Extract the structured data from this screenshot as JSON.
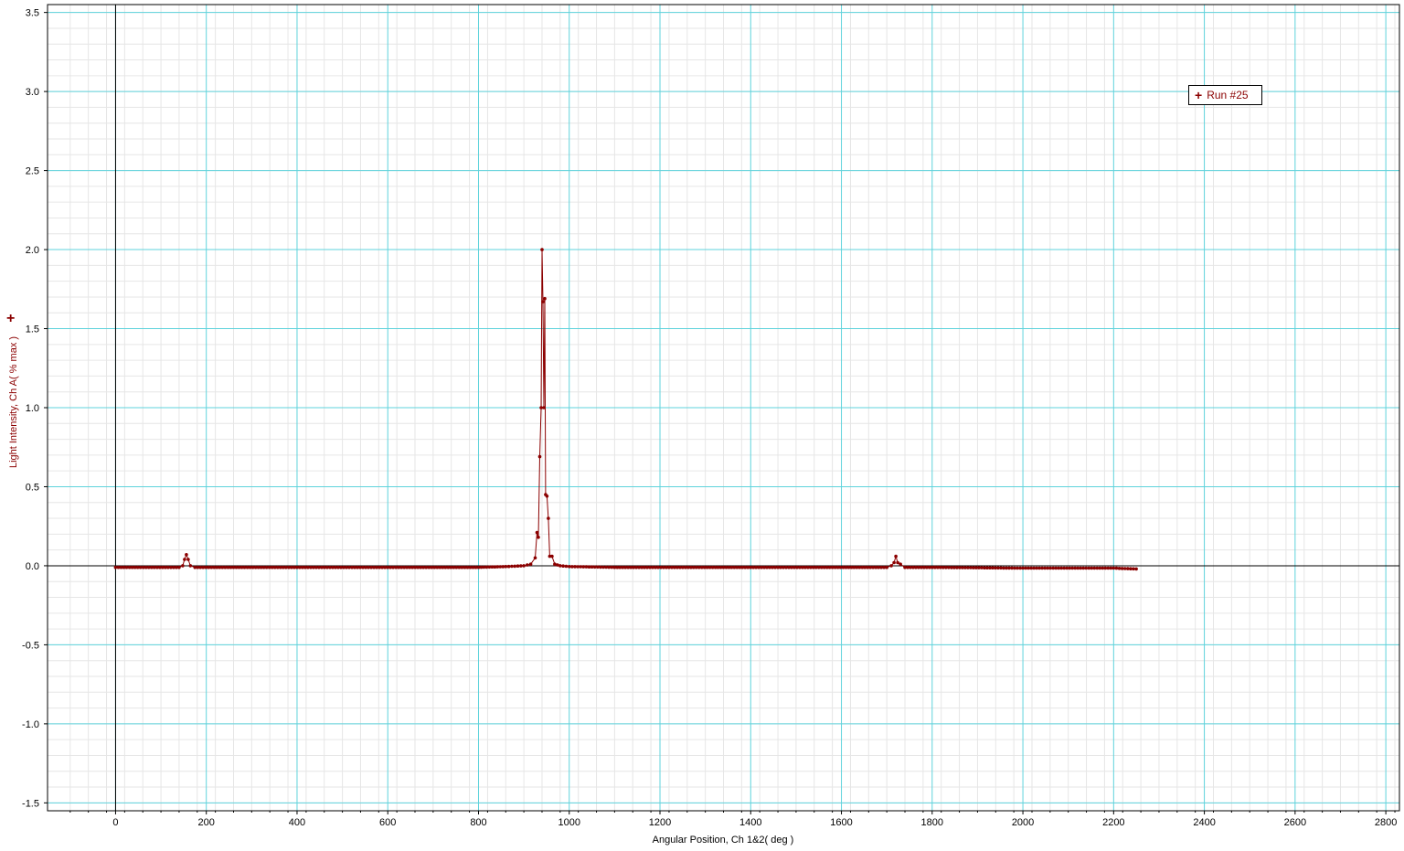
{
  "chart_data": {
    "type": "scatter",
    "title": "",
    "xlabel": "Angular Position, Ch 1&2( deg )",
    "ylabel": "Light Intensity, Ch A( % max )",
    "xlim": [
      -150,
      2830
    ],
    "ylim": [
      -1.55,
      3.55
    ],
    "x_ticks": [
      0,
      200,
      400,
      600,
      800,
      1000,
      1200,
      1400,
      1600,
      1800,
      2000,
      2200,
      2400,
      2600,
      2800
    ],
    "y_ticks": [
      -1.5,
      -1.0,
      -0.5,
      0.0,
      0.5,
      1.0,
      1.5,
      2.0,
      2.5,
      3.0,
      3.5
    ],
    "x_tick_labels": [
      "0",
      "200",
      "400",
      "600",
      "800",
      "1000",
      "1200",
      "1400",
      "1600",
      "1800",
      "2000",
      "2200",
      "2400",
      "2600",
      "2800"
    ],
    "y_tick_labels": [
      "-1.5",
      "-1.0",
      "-0.5",
      "0.0",
      "0.5",
      "1.0",
      "1.5",
      "2.0",
      "2.5",
      "3.0",
      "3.5"
    ],
    "grid": true,
    "legend": {
      "position": "top-right"
    },
    "series": [
      {
        "name": "Run #25",
        "color": "#8b0000",
        "marker": "dot",
        "line": true,
        "points": [
          [
            0,
            -0.01
          ],
          [
            140,
            -0.01
          ],
          [
            148,
            0.0
          ],
          [
            152,
            0.04
          ],
          [
            156,
            0.07
          ],
          [
            160,
            0.04
          ],
          [
            165,
            0.0
          ],
          [
            175,
            -0.01
          ],
          [
            600,
            -0.01
          ],
          [
            800,
            -0.01
          ],
          [
            860,
            -0.005
          ],
          [
            900,
            0.0
          ],
          [
            915,
            0.01
          ],
          [
            925,
            0.05
          ],
          [
            929,
            0.21
          ],
          [
            932,
            0.18
          ],
          [
            935,
            0.69
          ],
          [
            938,
            1.0
          ],
          [
            940,
            2.0
          ],
          [
            942,
            1.67
          ],
          [
            944,
            1.0
          ],
          [
            946,
            1.69
          ],
          [
            948,
            0.45
          ],
          [
            951,
            0.44
          ],
          [
            954,
            0.3
          ],
          [
            957,
            0.06
          ],
          [
            962,
            0.06
          ],
          [
            968,
            0.01
          ],
          [
            980,
            0.0
          ],
          [
            1000,
            -0.005
          ],
          [
            1100,
            -0.01
          ],
          [
            1400,
            -0.01
          ],
          [
            1700,
            -0.01
          ],
          [
            1710,
            0.0
          ],
          [
            1716,
            0.02
          ],
          [
            1720,
            0.06
          ],
          [
            1724,
            0.02
          ],
          [
            1730,
            0.01
          ],
          [
            1740,
            -0.01
          ],
          [
            1800,
            -0.01
          ],
          [
            2000,
            -0.015
          ],
          [
            2200,
            -0.015
          ],
          [
            2250,
            -0.02
          ]
        ]
      }
    ]
  }
}
